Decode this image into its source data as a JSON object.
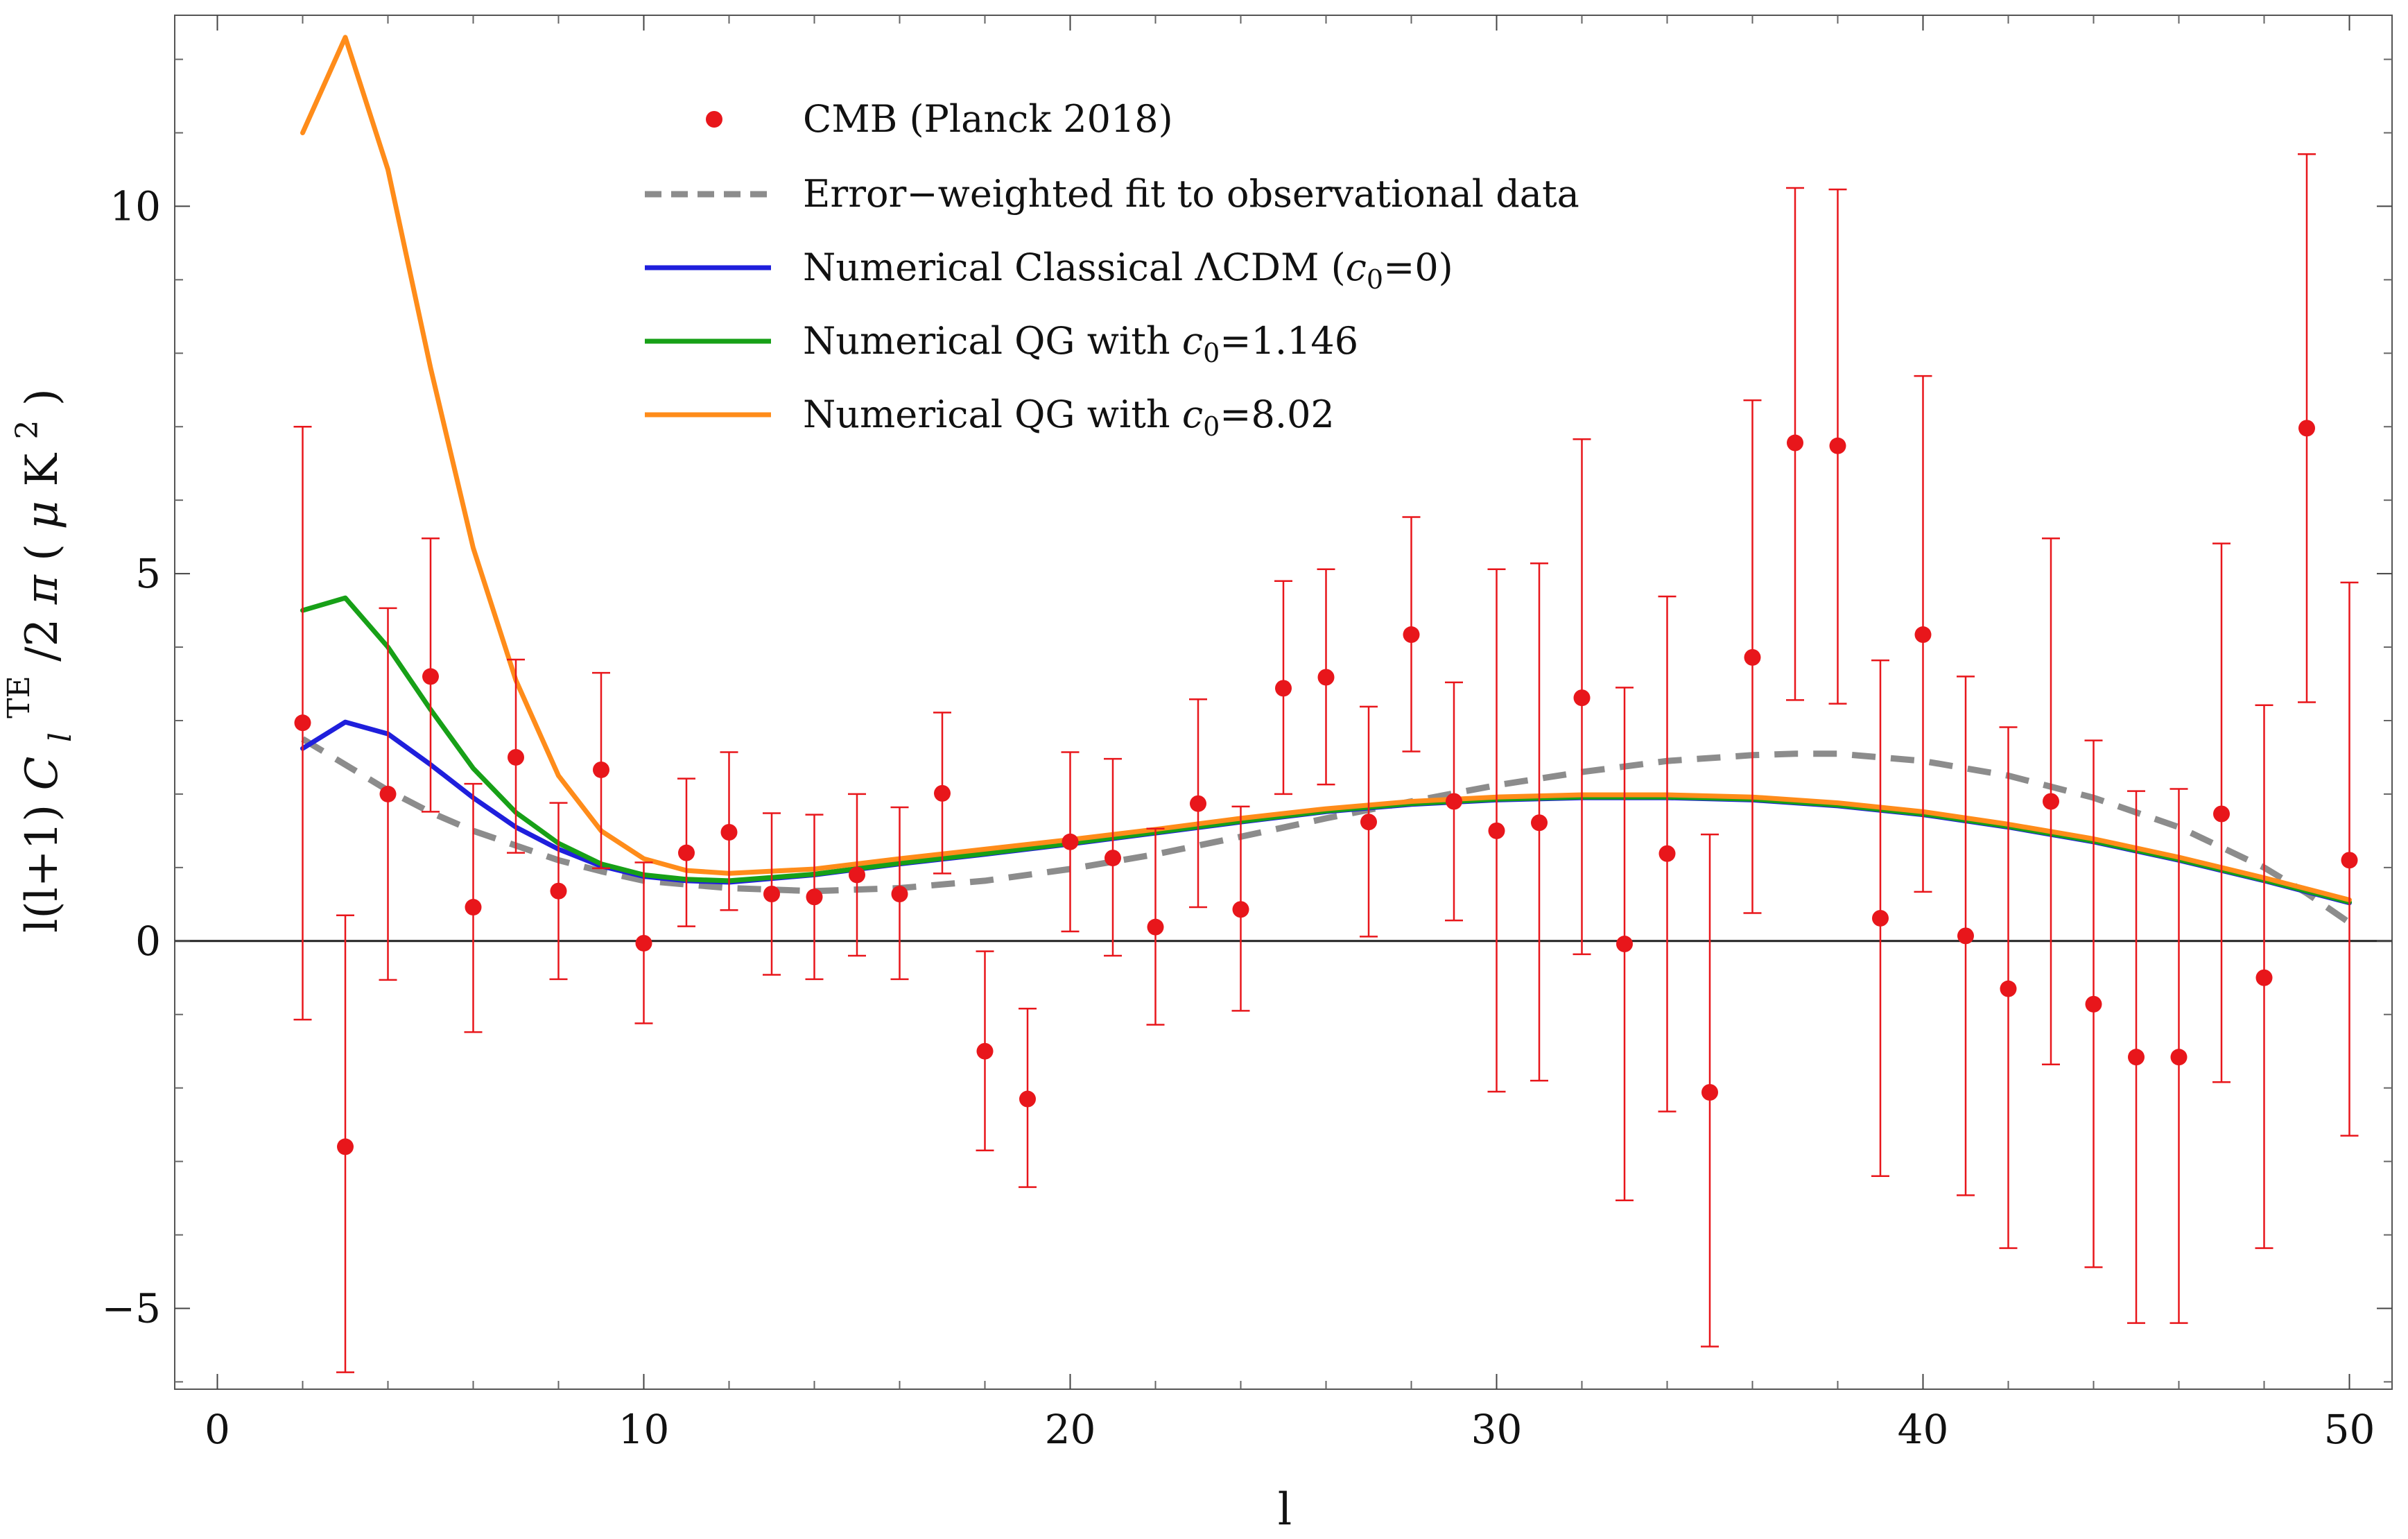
{
  "chart_data": {
    "type": "scatter",
    "title": "",
    "xlabel": "l",
    "ylabel": "l(l+1) C_l^TE/2π ( μK²)",
    "xlim": [
      -1,
      51
    ],
    "ylim": [
      -6.1,
      12.6
    ],
    "x_ticks": [
      0,
      10,
      20,
      30,
      40,
      50
    ],
    "x_tick_labels": [
      "0",
      "10",
      "20",
      "30",
      "40",
      "50"
    ],
    "y_ticks": [
      -5,
      0,
      5,
      10
    ],
    "y_tick_labels": [
      "−5",
      "0",
      "5",
      "10"
    ],
    "legend": {
      "position": "top-center",
      "entries": [
        {
          "label": "CMB (Planck 2018)",
          "style": "marker",
          "color": "#e8161b"
        },
        {
          "label": "Error−weighted fit to observational data",
          "style": "dashed",
          "color": "#8c8c8c"
        },
        {
          "label_main": "Numerical Classical ΛCDM (",
          "label_sym": "c",
          "label_sub": "0",
          "label_tail": "=0)",
          "style": "line",
          "color": "#1f1fdc"
        },
        {
          "label_main": "Numerical QG with ",
          "label_sym": "c",
          "label_sub": "0",
          "label_tail": "=1.146",
          "style": "line",
          "color": "#17a017"
        },
        {
          "label_main": "Numerical QG with ",
          "label_sym": "c",
          "label_sub": "0",
          "label_tail": "=8.02",
          "style": "line",
          "color": "#ff8c1a"
        }
      ]
    },
    "points": {
      "name": "CMB (Planck 2018)",
      "color": "#e8161b",
      "l": [
        2,
        3,
        4,
        5,
        6,
        7,
        8,
        9,
        10,
        11,
        12,
        13,
        14,
        15,
        16,
        17,
        18,
        19,
        20,
        21,
        22,
        23,
        24,
        25,
        26,
        27,
        28,
        29,
        30,
        31,
        32,
        33,
        34,
        35,
        36,
        37,
        38,
        39,
        40,
        41,
        42,
        43,
        44,
        45,
        46,
        47,
        48,
        49,
        50
      ],
      "value": [
        2.97,
        -2.8,
        2.0,
        3.6,
        0.46,
        2.5,
        0.68,
        2.33,
        -0.03,
        1.2,
        1.48,
        0.64,
        0.6,
        0.9,
        0.64,
        2.01,
        -1.5,
        -2.15,
        1.35,
        1.13,
        0.19,
        1.87,
        0.43,
        3.44,
        3.59,
        1.62,
        4.17,
        1.9,
        1.5,
        1.61,
        3.31,
        -0.04,
        1.19,
        -2.06,
        3.86,
        6.78,
        6.74,
        0.31,
        4.17,
        0.07,
        -0.65,
        1.9,
        -0.86,
        -1.58,
        -1.58,
        1.73,
        -0.5,
        6.98,
        1.1
      ],
      "err_low": [
        -1.07,
        -5.87,
        -0.53,
        1.76,
        -1.24,
        1.2,
        -0.52,
        0.99,
        -1.12,
        0.2,
        0.42,
        -0.46,
        -0.52,
        -0.2,
        -0.52,
        0.92,
        -2.85,
        -3.35,
        0.13,
        -0.2,
        -1.14,
        0.46,
        -0.95,
        2.0,
        2.13,
        0.06,
        2.58,
        0.28,
        -2.05,
        -1.9,
        -0.18,
        -3.53,
        -2.32,
        -5.52,
        0.38,
        3.28,
        3.23,
        -3.2,
        0.67,
        -3.46,
        -4.18,
        -1.68,
        -4.44,
        -5.2,
        -5.2,
        -1.92,
        -4.18,
        3.25,
        -2.65
      ],
      "err_high": [
        7.0,
        0.35,
        4.53,
        5.48,
        2.14,
        3.83,
        1.88,
        3.65,
        1.07,
        2.21,
        2.57,
        1.74,
        1.72,
        2.0,
        1.82,
        3.11,
        -0.14,
        -0.92,
        2.57,
        2.48,
        1.53,
        3.29,
        1.83,
        4.9,
        5.06,
        3.19,
        5.77,
        3.52,
        5.06,
        5.14,
        6.83,
        3.45,
        4.69,
        1.45,
        7.36,
        10.25,
        10.23,
        3.82,
        7.69,
        3.6,
        2.91,
        5.48,
        2.73,
        2.04,
        2.07,
        5.41,
        3.21,
        10.71,
        4.88
      ]
    },
    "series": [
      {
        "name": "Error-weighted fit to observational data",
        "color": "#8c8c8c",
        "dash": true,
        "x": [
          2,
          3,
          4,
          5,
          6,
          7,
          8,
          9,
          10,
          12,
          14,
          16,
          18,
          20,
          22,
          24,
          26,
          28,
          30,
          32,
          34,
          36,
          37,
          38,
          40,
          42,
          44,
          46,
          48,
          49,
          50
        ],
        "y": [
          2.75,
          2.4,
          2.05,
          1.75,
          1.5,
          1.3,
          1.1,
          0.95,
          0.82,
          0.72,
          0.68,
          0.72,
          0.82,
          0.98,
          1.18,
          1.42,
          1.67,
          1.9,
          2.12,
          2.3,
          2.45,
          2.53,
          2.55,
          2.55,
          2.45,
          2.25,
          1.95,
          1.55,
          1.0,
          0.65,
          0.25
        ]
      },
      {
        "name": "Numerical Classical ΛCDM (c0=0)",
        "color": "#1f1fdc",
        "dash": false,
        "x": [
          2,
          3,
          4,
          5,
          6,
          7,
          8,
          9,
          10,
          11,
          12,
          14,
          16,
          18,
          20,
          22,
          24,
          26,
          28,
          30,
          32,
          34,
          36,
          38,
          40,
          42,
          44,
          46,
          48,
          50
        ],
        "y": [
          2.62,
          2.98,
          2.82,
          2.4,
          1.95,
          1.55,
          1.25,
          1.02,
          0.88,
          0.82,
          0.8,
          0.9,
          1.05,
          1.18,
          1.32,
          1.47,
          1.62,
          1.76,
          1.86,
          1.92,
          1.95,
          1.95,
          1.92,
          1.84,
          1.72,
          1.55,
          1.35,
          1.1,
          0.82,
          0.52
        ]
      },
      {
        "name": "Numerical QG with c0=1.146",
        "color": "#17a017",
        "dash": false,
        "x": [
          2,
          3,
          4,
          5,
          6,
          7,
          8,
          9,
          10,
          11,
          12,
          14,
          16,
          18,
          20,
          22,
          24,
          26,
          28,
          30,
          32,
          34,
          36,
          38,
          40,
          42,
          44,
          46,
          48,
          50
        ],
        "y": [
          4.5,
          4.67,
          4.0,
          3.15,
          2.35,
          1.75,
          1.33,
          1.05,
          0.9,
          0.84,
          0.82,
          0.91,
          1.06,
          1.19,
          1.33,
          1.48,
          1.63,
          1.77,
          1.87,
          1.93,
          1.96,
          1.96,
          1.93,
          1.85,
          1.73,
          1.56,
          1.36,
          1.11,
          0.83,
          0.53
        ]
      },
      {
        "name": "Numerical QG with c0=8.02",
        "color": "#ff8c1a",
        "dash": false,
        "x": [
          2,
          3,
          4,
          5,
          6,
          7,
          8,
          9,
          10,
          11,
          12,
          14,
          16,
          18,
          20,
          22,
          24,
          26,
          28,
          30,
          32,
          34,
          36,
          38,
          40,
          42,
          44,
          46,
          48,
          50
        ],
        "y": [
          11.0,
          12.3,
          10.5,
          7.8,
          5.35,
          3.55,
          2.25,
          1.5,
          1.12,
          0.96,
          0.92,
          0.98,
          1.12,
          1.25,
          1.38,
          1.52,
          1.67,
          1.8,
          1.9,
          1.96,
          1.99,
          1.99,
          1.96,
          1.88,
          1.76,
          1.59,
          1.39,
          1.14,
          0.86,
          0.56
        ]
      }
    ]
  }
}
